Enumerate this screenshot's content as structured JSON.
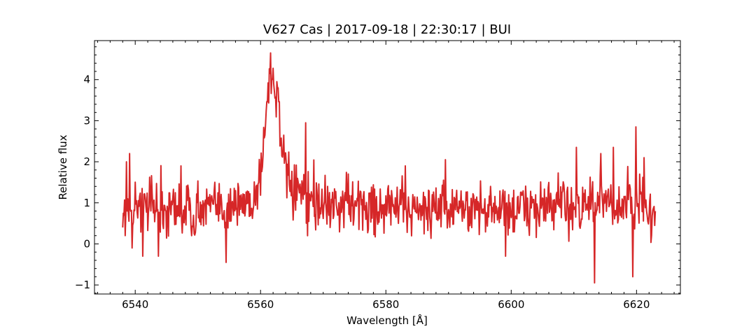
{
  "chart_data": {
    "type": "line",
    "title": "V627 Cas | 2017-09-18 | 22:30:17 | BUI",
    "xlabel": "Wavelength [Å]",
    "ylabel": "Relative flux",
    "xlim": [
      6533.5,
      6627.0
    ],
    "ylim": [
      -1.22,
      4.95
    ],
    "x_ticks": [
      6540,
      6560,
      6580,
      6600,
      6620
    ],
    "y_ticks": [
      -1,
      0,
      1,
      2,
      3,
      4
    ],
    "x_tick_labels": [
      "6540",
      "6560",
      "6580",
      "6600",
      "6620"
    ],
    "y_tick_labels": [
      "−1",
      "0",
      "1",
      "2",
      "3",
      "4"
    ],
    "x_minor_step": 2,
    "y_minor_step": 0.2,
    "grid": false,
    "series": [
      {
        "color": "#d62728",
        "x_start": 6538.0,
        "x_end": 6623.0,
        "x_step": 0.1,
        "anchor_x": [
          6538.0,
          6540.0,
          6545.0,
          6550.0,
          6555.0,
          6558.0,
          6559.5,
          6560.5,
          6561.2,
          6561.8,
          6562.3,
          6562.8,
          6563.5,
          6564.5,
          6565.5,
          6567.0,
          6570.0,
          6580.0,
          6590.0,
          6600.0,
          6610.0,
          6615.0,
          6620.0,
          6623.0
        ],
        "anchor_y": [
          0.8,
          0.9,
          0.85,
          0.85,
          0.9,
          1.0,
          1.3,
          2.3,
          3.8,
          4.1,
          3.9,
          3.3,
          2.3,
          1.5,
          1.2,
          1.05,
          0.95,
          0.9,
          0.85,
          0.85,
          0.95,
          0.95,
          0.9,
          0.75
        ],
        "noise_amplitude": 0.5,
        "spikes": [
          {
            "x": 6538.0,
            "y": 0.4
          },
          {
            "x": 6538.6,
            "y": 2.0
          },
          {
            "x": 6539.1,
            "y": 2.2
          },
          {
            "x": 6539.5,
            "y": -0.1
          },
          {
            "x": 6541.2,
            "y": -0.3
          },
          {
            "x": 6543.7,
            "y": -0.3
          },
          {
            "x": 6547.3,
            "y": 1.9
          },
          {
            "x": 6549.0,
            "y": 0.2
          },
          {
            "x": 6554.5,
            "y": -0.45
          },
          {
            "x": 6561.6,
            "y": 4.65
          },
          {
            "x": 6562.6,
            "y": 3.95
          },
          {
            "x": 6567.2,
            "y": 2.95
          },
          {
            "x": 6567.5,
            "y": 0.2
          },
          {
            "x": 6574.0,
            "y": 1.7
          },
          {
            "x": 6583.1,
            "y": 1.9
          },
          {
            "x": 6589.5,
            "y": 2.05
          },
          {
            "x": 6599.1,
            "y": -0.3
          },
          {
            "x": 6610.4,
            "y": 2.35
          },
          {
            "x": 6613.3,
            "y": -0.95
          },
          {
            "x": 6614.3,
            "y": 2.2
          },
          {
            "x": 6616.3,
            "y": 2.35
          },
          {
            "x": 6619.4,
            "y": -0.8
          },
          {
            "x": 6619.9,
            "y": 2.85
          },
          {
            "x": 6621.2,
            "y": 2.1
          }
        ]
      }
    ]
  }
}
